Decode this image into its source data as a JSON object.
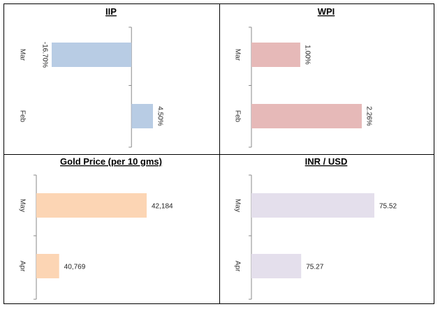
{
  "chart_data": [
    {
      "type": "bar",
      "title": "IIP",
      "categories": [
        "Mar",
        "Feb"
      ],
      "values": [
        -16.7,
        4.5
      ],
      "value_labels": [
        "-16.70%",
        "4.50%"
      ],
      "xlim": [
        -16.7,
        4.5
      ],
      "label_orientation": "rotated",
      "color": "#b8cce4"
    },
    {
      "type": "bar",
      "title": "WPI",
      "categories": [
        "Mar",
        "Feb"
      ],
      "values": [
        1.0,
        2.26
      ],
      "value_labels": [
        "1.00%",
        "2.26%"
      ],
      "xlim": [
        0,
        2.26
      ],
      "label_orientation": "rotated",
      "color": "#e6b9b8"
    },
    {
      "type": "bar",
      "title": "Gold Price (per 10 gms)",
      "categories": [
        "May",
        "Apr"
      ],
      "values": [
        42184,
        40769
      ],
      "value_labels": [
        "42,184",
        "40,769"
      ],
      "xlim": [
        40400,
        42184
      ],
      "label_orientation": "horizontal",
      "color": "#fcd5b4"
    },
    {
      "type": "bar",
      "title": "INR / USD",
      "categories": [
        "May",
        "Apr"
      ],
      "values": [
        75.52,
        75.27
      ],
      "value_labels": [
        "75.52",
        "75.27"
      ],
      "xlim": [
        75.1,
        75.52
      ],
      "label_orientation": "horizontal",
      "color": "#e4dfec"
    }
  ]
}
